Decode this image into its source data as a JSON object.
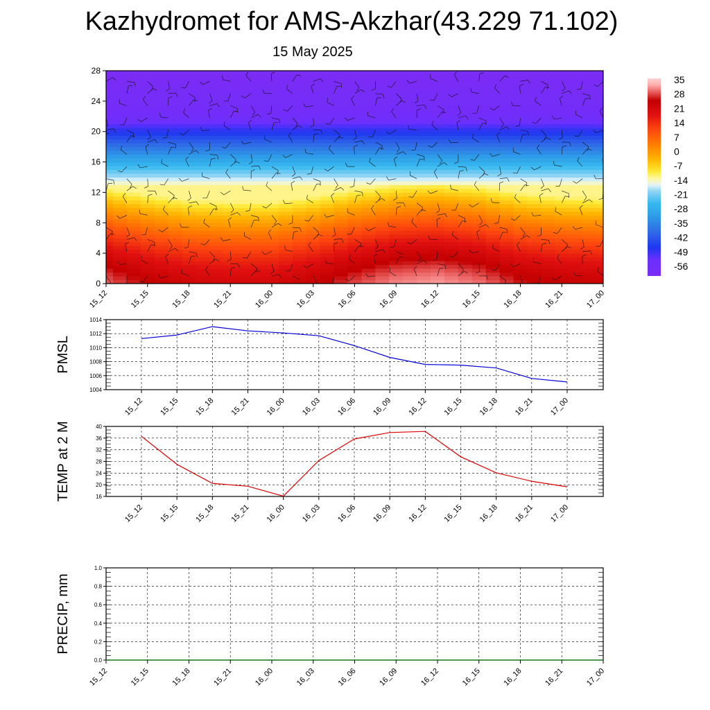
{
  "header": {
    "title": "Kazhydromet for AMS-Akzhar(43.229 71.102)",
    "date": "15 May 2025"
  },
  "chart_data": [
    {
      "type": "heatmap",
      "name": "contour",
      "times": [
        "15_12",
        "15_15",
        "15_18",
        "15_21",
        "16_00",
        "16_03",
        "16_06",
        "16_09",
        "16_12",
        "16_15",
        "16_18",
        "16_21",
        "17_00"
      ],
      "heights": [
        0,
        1,
        2,
        3,
        4,
        5,
        6,
        7,
        8,
        9,
        10,
        11,
        12,
        13,
        14,
        15,
        16,
        17,
        18,
        19,
        20,
        21,
        22,
        23,
        24,
        25,
        26,
        27,
        28
      ],
      "yticks": [
        0,
        4,
        8,
        12,
        16,
        20,
        24,
        28
      ],
      "ylim": [
        0,
        28
      ],
      "surface_temp_by_time": [
        31,
        27,
        24,
        23,
        23,
        26,
        30,
        33,
        34,
        32,
        28,
        26,
        25
      ],
      "colorbar": {
        "labels": [
          "35",
          "28",
          "21",
          "14",
          "7",
          "0",
          "-7",
          "-14",
          "-21",
          "-28",
          "-35",
          "-42",
          "-49",
          "-56"
        ],
        "range": [
          -60,
          38
        ],
        "stops": [
          [
            -60,
            "#7b2cf5"
          ],
          [
            -52,
            "#6a2fff"
          ],
          [
            -46,
            "#1f36f0"
          ],
          [
            -38,
            "#2f6be6"
          ],
          [
            -30,
            "#2e9ee8"
          ],
          [
            -24,
            "#36b8ef"
          ],
          [
            -18,
            "#8fd4f4"
          ],
          [
            -15,
            "#e2f3fb"
          ],
          [
            -12,
            "#fff8a8"
          ],
          [
            -8,
            "#ffe832"
          ],
          [
            -2,
            "#ffb300"
          ],
          [
            5,
            "#ff7f00"
          ],
          [
            12,
            "#ff4b0e"
          ],
          [
            20,
            "#e01010"
          ],
          [
            27,
            "#c30000"
          ],
          [
            31,
            "#e85a5a"
          ],
          [
            35,
            "#ffb0b0"
          ],
          [
            38,
            "#ffd3d3"
          ]
        ]
      }
    },
    {
      "type": "line",
      "name": "pmsl",
      "ylabel": "PMSL",
      "categories": [
        "15_12",
        "15_15",
        "15_18",
        "15_21",
        "16_00",
        "16_03",
        "16_06",
        "16_09",
        "16_12",
        "16_15",
        "16_18",
        "16_21",
        "17_00"
      ],
      "values": [
        1011.3,
        1011.8,
        1013.0,
        1012.4,
        1012.1,
        1011.7,
        1010.3,
        1008.6,
        1007.6,
        1007.5,
        1007.1,
        1005.6,
        1005.1
      ],
      "ylim": [
        1004,
        1014
      ],
      "yticks": [
        "1004",
        "1006",
        "1008",
        "1010",
        "1012",
        "1014"
      ],
      "color": "#0000dd",
      "grid": true
    },
    {
      "type": "line",
      "name": "temp",
      "ylabel": "TEMP at 2 M",
      "categories": [
        "15_12",
        "15_15",
        "15_18",
        "15_21",
        "16_00",
        "16_03",
        "16_06",
        "16_09",
        "16_12",
        "16_15",
        "16_18",
        "16_21",
        "17_00"
      ],
      "values": [
        36.6,
        27.0,
        20.5,
        19.5,
        16.1,
        28.3,
        35.7,
        37.9,
        38.3,
        29.6,
        24.1,
        21.2,
        19.3
      ],
      "ylim": [
        16,
        40
      ],
      "yticks": [
        "16",
        "20",
        "24",
        "28",
        "32",
        "36",
        "40"
      ],
      "color": "#dd0000",
      "grid": true
    },
    {
      "type": "line",
      "name": "precip",
      "ylabel": "PRECIP, mm",
      "categories": [
        "15_12",
        "15_15",
        "15_18",
        "15_21",
        "16_00",
        "16_03",
        "16_06",
        "16_09",
        "16_12",
        "16_15",
        "16_18",
        "16_21",
        "17_00"
      ],
      "values": [
        0,
        0,
        0,
        0,
        0,
        0,
        0,
        0,
        0,
        0,
        0,
        0,
        0
      ],
      "ylim": [
        0,
        1
      ],
      "yticks": [
        "0.0",
        "0.2",
        "0.4",
        "0.6",
        "0.8",
        "1.0"
      ],
      "color": "#007700",
      "grid": true
    }
  ]
}
